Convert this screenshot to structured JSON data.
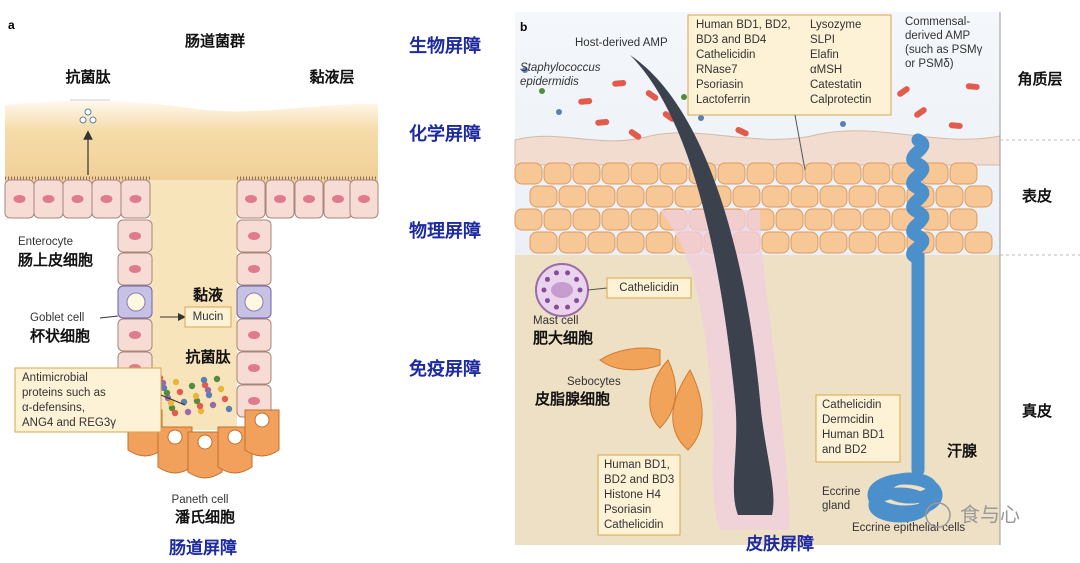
{
  "panel_a": {
    "label": "a",
    "microbiota": "肠道菌群",
    "amp_top": "抗菌肽",
    "mucus_layer": "黏液层",
    "enterocyte": {
      "en": "Enterocyte",
      "zh": "肠上皮细胞"
    },
    "goblet": {
      "en": "Goblet cell",
      "zh": "杯状细胞"
    },
    "mucus": "黏液",
    "mucin": "Mucin",
    "amp_mid": "抗菌肽",
    "antimicrobial_proteins": [
      "Antimicrobial",
      "proteins such as",
      "α-defensins,",
      "ANG4 and REG3γ"
    ],
    "paneth": {
      "en": "Paneth cell",
      "zh": "潘氏细胞"
    },
    "caption": "肠道屏障"
  },
  "barriers": [
    "生物屏障",
    "化学屏障",
    "物理屏障",
    "免疫屏障"
  ],
  "panel_b": {
    "label": "b",
    "host_amp": "Host-derived AMP",
    "staph": [
      "Staphylococcus",
      "epidermidis"
    ],
    "amp_list_left": [
      "Human BD1, BD2,",
      "BD3 and BD4",
      "Cathelicidin",
      "RNase7",
      "Psoriasin",
      "Lactoferrin"
    ],
    "amp_list_right": [
      "Lysozyme",
      "SLPI",
      "Elafin",
      "αMSH",
      "Catestatin",
      "Calprotectin"
    ],
    "commensal_amp": [
      "Commensal-",
      "derived AMP",
      "(such as PSMγ",
      "or PSMδ)"
    ],
    "layers": [
      "角质层",
      "表皮",
      "真皮"
    ],
    "mast_box": "Cathelicidin",
    "mast_cell": {
      "en": "Mast cell",
      "zh": "肥大细胞"
    },
    "sebocytes": {
      "en": "Sebocytes",
      "zh": "皮脂腺细胞"
    },
    "sebocyte_box": [
      "Human BD1,",
      "BD2 and BD3",
      "Histone H4",
      "Psoriasin",
      "Cathelicidin"
    ],
    "sweat_box": [
      "Cathelicidin",
      "Dermcidin",
      "Human BD1",
      "and BD2"
    ],
    "sweat_gland": "汗腺",
    "eccrine_gland": [
      "Eccrine",
      "gland"
    ],
    "eccrine_cells": "Eccrine epithelial cells",
    "caption": "皮肤屏障"
  },
  "watermark": "食与心"
}
